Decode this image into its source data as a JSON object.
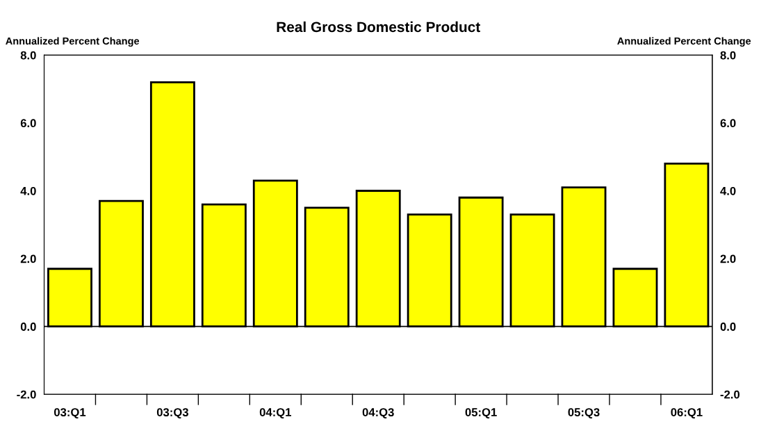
{
  "chart_data": {
    "type": "bar",
    "title": "Real Gross Domestic Product",
    "ylabel": "Annualized Percent Change",
    "y2label": "Annualized Percent Change",
    "categories": [
      "03:Q1",
      null,
      "03:Q3",
      null,
      "04:Q1",
      null,
      "04:Q3",
      null,
      "05:Q1",
      null,
      "05:Q3",
      null,
      "06:Q1"
    ],
    "values": [
      1.7,
      3.7,
      7.2,
      3.6,
      4.3,
      3.5,
      4.0,
      3.3,
      3.8,
      3.3,
      4.1,
      1.7,
      4.8
    ],
    "color": "#ffff00",
    "ylim": [
      -2,
      8
    ],
    "yticks": [
      {
        "value": -2,
        "label": "-2.0"
      },
      {
        "value": 0,
        "label": "0.0"
      },
      {
        "value": 2,
        "label": "2.0"
      },
      {
        "value": 4,
        "label": "4.0"
      },
      {
        "value": 6,
        "label": "6.0"
      },
      {
        "value": 8,
        "label": "8.0"
      }
    ],
    "y2lim": [
      -2,
      8
    ],
    "y2ticks": [
      {
        "value": -2,
        "label": "-2.0"
      },
      {
        "value": 0,
        "label": "0.0"
      },
      {
        "value": 2,
        "label": "2.0"
      },
      {
        "value": 4,
        "label": "4.0"
      },
      {
        "value": 6,
        "label": "6.0"
      },
      {
        "value": 8,
        "label": "8.0"
      }
    ],
    "ref_lines": [
      {
        "axis": "y",
        "value": 0,
        "color": "#000000"
      }
    ],
    "grid": false,
    "legend": false
  }
}
